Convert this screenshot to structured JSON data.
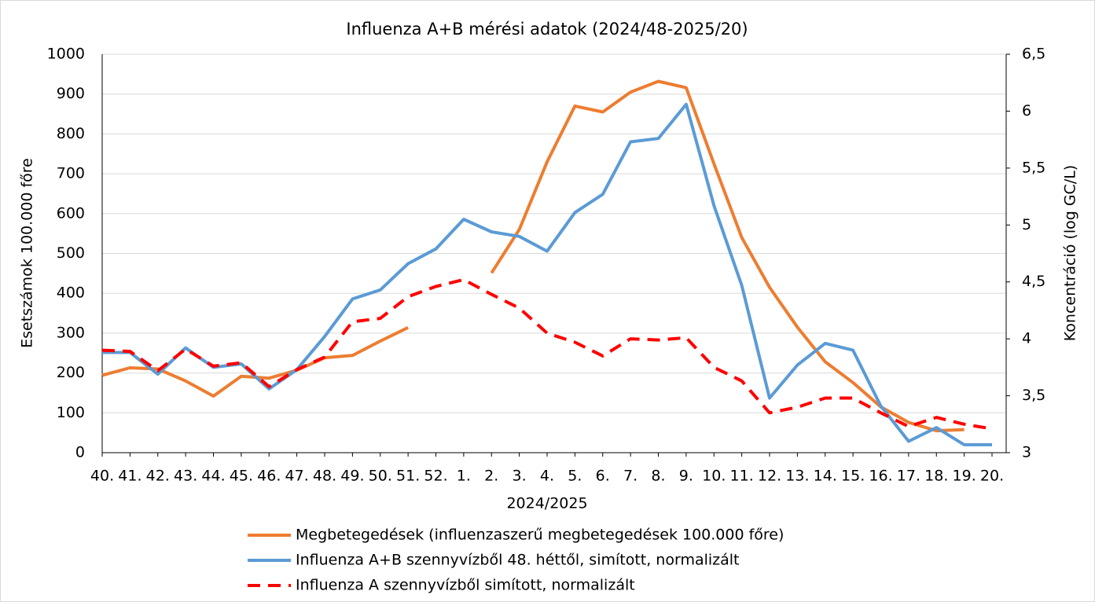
{
  "chart_data": {
    "type": "line",
    "title": "Influenza A+B mérési adatok (2024/48-2025/20)",
    "x_label": "2024/2025",
    "y_label": "Esetszámok 100.000 főre",
    "y2_label": "Koncentráció (log GC/L)",
    "categories": [
      "40.",
      "41.",
      "42.",
      "43.",
      "44.",
      "45.",
      "46.",
      "47.",
      "48.",
      "49.",
      "50.",
      "51.",
      "52.",
      "1.",
      "2.",
      "3.",
      "4.",
      "5.",
      "6.",
      "7.",
      "8.",
      "9.",
      "10.",
      "11.",
      "12.",
      "13.",
      "14.",
      "15.",
      "16.",
      "17.",
      "18.",
      "19.",
      "20."
    ],
    "ylim": [
      0,
      1000
    ],
    "yticks": [
      0,
      100,
      200,
      300,
      400,
      500,
      600,
      700,
      800,
      900,
      1000
    ],
    "y2lim": [
      3,
      6.5
    ],
    "y2ticks": [
      3,
      {
        "value": 3.5,
        "label": "3,5"
      },
      4,
      {
        "value": 4.5,
        "label": "4,5"
      },
      5,
      {
        "value": 5.5,
        "label": "5,5"
      },
      6,
      {
        "value": 6.5,
        "label": "6,5"
      }
    ],
    "grid": true,
    "legend": "bottom",
    "series": [
      {
        "name": "Megbetegedések (influenzaszerű megbetegedések 100.000 főre)",
        "color": "#ed7d31",
        "dash": false,
        "values": [
          194,
          213,
          210,
          180,
          142,
          192,
          187,
          207,
          238,
          244,
          280,
          314,
          null,
          null,
          451,
          560,
          730,
          870,
          855,
          905,
          932,
          916,
          725,
          540,
          415,
          315,
          228,
          176,
          115,
          76,
          55,
          58,
          null
        ]
      },
      {
        "name": "Influenza A+B szennyvízből 48. héttől, simított, normalizált",
        "color": "#5b9bd5",
        "axis": "y2",
        "dash": false,
        "values": [
          3.88,
          3.88,
          3.69,
          3.92,
          3.75,
          3.78,
          3.56,
          3.73,
          4.02,
          4.35,
          4.43,
          4.66,
          4.79,
          5.05,
          4.94,
          4.9,
          4.77,
          5.11,
          5.27,
          5.73,
          5.76,
          6.06,
          5.17,
          4.47,
          3.48,
          3.77,
          3.96,
          3.9,
          3.41,
          3.1,
          3.22,
          3.07,
          3.07
        ]
      },
      {
        "name": "Influenza A szennyvízből simított, normalizált",
        "color": "#ff0000",
        "axis": "y2",
        "dash": true,
        "values": [
          3.9,
          3.89,
          3.72,
          3.91,
          3.76,
          3.79,
          3.58,
          3.73,
          3.84,
          4.15,
          4.18,
          4.37,
          4.46,
          4.52,
          4.39,
          4.27,
          4.05,
          3.97,
          3.85,
          4.0,
          3.99,
          4.01,
          3.75,
          3.63,
          3.35,
          3.4,
          3.48,
          3.48,
          3.35,
          3.23,
          3.31,
          3.25,
          3.21
        ]
      }
    ]
  }
}
